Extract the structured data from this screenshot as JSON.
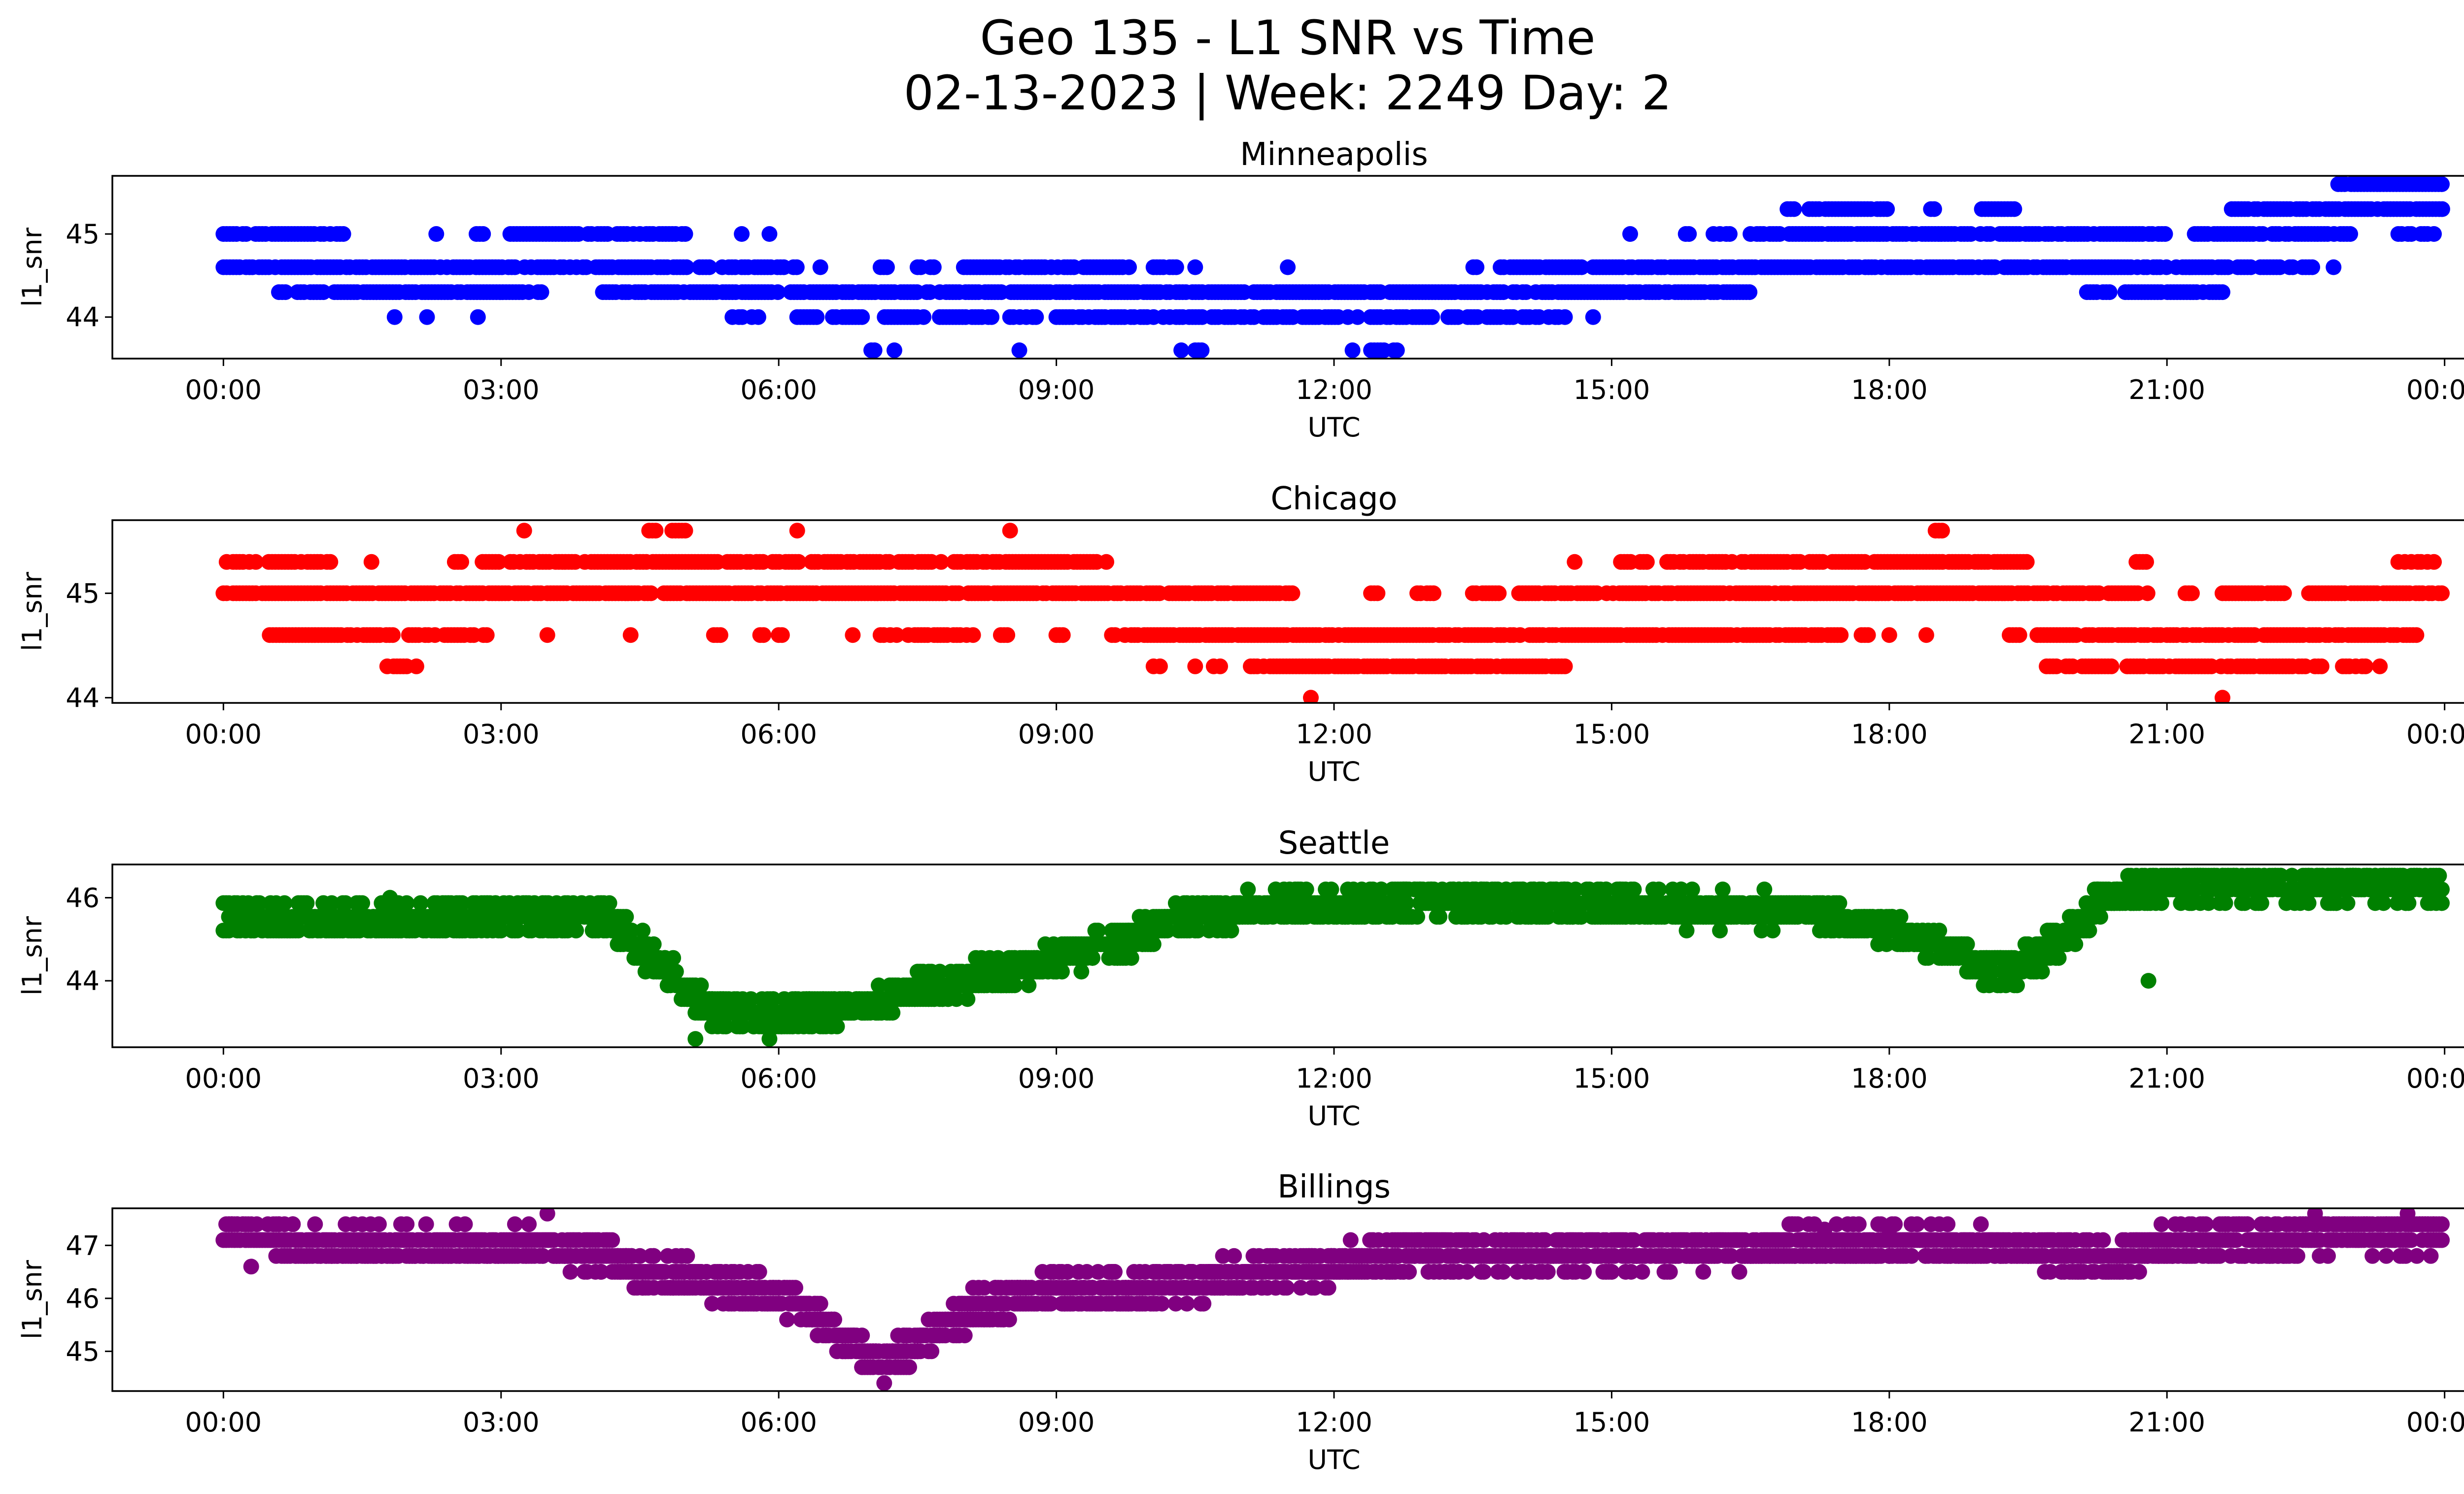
{
  "figure": {
    "title_line1": "Geo 135 - L1 SNR vs Time",
    "title_line2": "02-13-2023 | Week: 2249 Day: 2"
  },
  "chart_data": [
    {
      "type": "scatter",
      "title": "Minneapolis",
      "xlabel": "UTC",
      "ylabel": "l1_snr",
      "color": "#0000ff",
      "xlim_hours": [
        -1.2,
        25.2
      ],
      "ylim": [
        43.5,
        45.7
      ],
      "yticks": [
        44,
        45
      ],
      "xtick_labels": [
        "00:00",
        "03:00",
        "06:00",
        "09:00",
        "12:00",
        "15:00",
        "18:00",
        "21:00",
        "00:00"
      ],
      "grid": false,
      "bands": [
        {
          "y": 45.6,
          "segments": [
            [
              22.85,
              24.0
            ]
          ],
          "density": 0.95
        },
        {
          "y": 45.3,
          "segments": [
            [
              16.9,
              17.0
            ],
            [
              17.1,
              18.0
            ],
            [
              18.45,
              18.5
            ],
            [
              19.0,
              19.35
            ],
            [
              21.7,
              24.0
            ]
          ],
          "density": 0.85
        },
        {
          "y": 45.0,
          "segments": [
            [
              0.0,
              1.3
            ],
            [
              2.3,
              2.3
            ],
            [
              2.7,
              2.85
            ],
            [
              3.1,
              5.0
            ],
            [
              5.6,
              5.6
            ],
            [
              5.9,
              5.9
            ],
            [
              15.2,
              15.2
            ],
            [
              15.8,
              15.9
            ],
            [
              16.1,
              16.3
            ],
            [
              16.5,
              21.0
            ],
            [
              21.3,
              23.0
            ],
            [
              23.5,
              24.0
            ]
          ],
          "density": 0.8
        },
        {
          "y": 44.6,
          "segments": [
            [
              0.0,
              6.2
            ],
            [
              6.45,
              6.5
            ],
            [
              7.1,
              7.2
            ],
            [
              7.5,
              7.7
            ],
            [
              8.0,
              9.8
            ],
            [
              10.05,
              10.3
            ],
            [
              10.5,
              10.5
            ],
            [
              11.5,
              11.5
            ],
            [
              13.4,
              13.6
            ],
            [
              13.8,
              14.7
            ],
            [
              14.8,
              22.6
            ],
            [
              22.8,
              22.8
            ]
          ],
          "density": 0.8
        },
        {
          "y": 44.3,
          "segments": [
            [
              0.6,
              0.7
            ],
            [
              0.8,
              1.1
            ],
            [
              1.2,
              3.3
            ],
            [
              3.4,
              3.5
            ],
            [
              4.1,
              16.5
            ],
            [
              20.1,
              20.4
            ],
            [
              20.55,
              21.6
            ]
          ],
          "density": 0.85
        },
        {
          "y": 44.0,
          "segments": [
            [
              1.85,
              1.85
            ],
            [
              2.2,
              2.2
            ],
            [
              2.75,
              2.75
            ],
            [
              5.5,
              5.8
            ],
            [
              6.2,
              8.3
            ],
            [
              8.5,
              8.8
            ],
            [
              9.0,
              14.5
            ],
            [
              14.8,
              14.8
            ]
          ],
          "density": 0.7
        },
        {
          "y": 43.6,
          "segments": [
            [
              7.0,
              7.1
            ],
            [
              7.25,
              7.25
            ],
            [
              8.6,
              8.6
            ],
            [
              10.35,
              10.35
            ],
            [
              10.5,
              10.6
            ],
            [
              12.2,
              12.2
            ],
            [
              12.4,
              12.7
            ]
          ],
          "density": 0.8
        }
      ]
    },
    {
      "type": "scatter",
      "title": "Chicago",
      "xlabel": "UTC",
      "ylabel": "l1_snr",
      "color": "#ff0000",
      "xlim_hours": [
        -1.2,
        25.2
      ],
      "ylim": [
        43.95,
        45.7
      ],
      "yticks": [
        44,
        45
      ],
      "xtick_labels": [
        "00:00",
        "03:00",
        "06:00",
        "09:00",
        "12:00",
        "15:00",
        "18:00",
        "21:00",
        "00:00"
      ],
      "grid": false,
      "bands": [
        {
          "y": 45.6,
          "segments": [
            [
              3.25,
              3.25
            ],
            [
              4.6,
              4.7
            ],
            [
              4.85,
              5.0
            ],
            [
              6.2,
              6.2
            ],
            [
              8.5,
              8.5
            ],
            [
              18.5,
              18.6
            ]
          ],
          "density": 0.95
        },
        {
          "y": 45.3,
          "segments": [
            [
              0.0,
              1.2
            ],
            [
              1.6,
              1.6
            ],
            [
              2.5,
              2.6
            ],
            [
              2.8,
              3.0
            ],
            [
              3.1,
              9.6
            ],
            [
              14.6,
              14.6
            ],
            [
              15.1,
              15.4
            ],
            [
              15.6,
              19.5
            ],
            [
              20.6,
              20.8
            ],
            [
              23.5,
              23.9
            ]
          ],
          "density": 0.8
        },
        {
          "y": 45.0,
          "segments": [
            [
              0.0,
              11.6
            ],
            [
              12.4,
              12.5
            ],
            [
              12.9,
              13.1
            ],
            [
              13.5,
              13.8
            ],
            [
              14.0,
              20.8
            ],
            [
              21.2,
              21.3
            ],
            [
              21.6,
              22.3
            ],
            [
              22.5,
              24.0
            ]
          ],
          "density": 0.9
        },
        {
          "y": 44.6,
          "segments": [
            [
              0.5,
              2.9
            ],
            [
              3.5,
              3.5
            ],
            [
              4.4,
              4.4
            ],
            [
              5.3,
              5.4
            ],
            [
              5.8,
              5.9
            ],
            [
              6.0,
              6.1
            ],
            [
              6.8,
              6.8
            ],
            [
              7.1,
              7.3
            ],
            [
              7.4,
              8.1
            ],
            [
              8.4,
              8.5
            ],
            [
              9.0,
              9.1
            ],
            [
              9.6,
              17.5
            ],
            [
              17.7,
              17.8
            ],
            [
              18.0,
              18.0
            ],
            [
              18.4,
              18.4
            ],
            [
              19.3,
              19.5
            ],
            [
              19.6,
              23.7
            ]
          ],
          "density": 0.85
        },
        {
          "y": 44.3,
          "segments": [
            [
              1.7,
              2.1
            ],
            [
              10.05,
              10.15
            ],
            [
              10.5,
              10.5
            ],
            [
              10.7,
              10.8
            ],
            [
              11.1,
              14.5
            ],
            [
              19.7,
              20.4
            ],
            [
              20.5,
              22.5
            ],
            [
              22.6,
              22.7
            ],
            [
              22.9,
              23.2
            ],
            [
              23.3,
              23.4
            ]
          ],
          "density": 0.85
        },
        {
          "y": 44.0,
          "segments": [
            [
              11.75,
              11.75
            ],
            [
              21.6,
              21.6
            ]
          ],
          "density": 1.0
        }
      ]
    },
    {
      "type": "scatter",
      "title": "Seattle",
      "xlabel": "UTC",
      "ylabel": "l1_snr",
      "color": "#008000",
      "xlim_hours": [
        -1.2,
        25.2
      ],
      "ylim": [
        42.4,
        46.8
      ],
      "yticks": [
        44,
        46
      ],
      "xtick_labels": [
        "00:00",
        "03:00",
        "06:00",
        "09:00",
        "12:00",
        "15:00",
        "18:00",
        "21:00",
        "00:00"
      ],
      "grid": false,
      "profile": {
        "times": [
          0,
          1,
          2,
          3,
          4,
          4.3,
          4.6,
          4.9,
          5.2,
          5.6,
          6.0,
          6.5,
          7.0,
          7.5,
          8.0,
          8.5,
          9.0,
          9.5,
          10.0,
          10.5,
          11.0,
          12.0,
          13.0,
          14.0,
          15.0,
          16.0,
          17.0,
          17.5,
          18.0,
          18.5,
          19.0,
          19.3,
          19.6,
          20.0,
          20.3,
          20.6,
          21.0,
          22.0,
          23.0,
          24.0
        ],
        "center": [
          45.6,
          45.4,
          45.5,
          45.6,
          45.6,
          45.3,
          44.6,
          44.0,
          43.4,
          43.2,
          43.2,
          43.3,
          43.5,
          43.8,
          44.0,
          44.2,
          44.5,
          44.8,
          45.2,
          45.6,
          45.7,
          45.8,
          45.9,
          45.9,
          45.8,
          45.7,
          45.7,
          45.5,
          45.2,
          44.8,
          44.3,
          44.3,
          44.6,
          45.2,
          45.9,
          46.2,
          46.3,
          46.3,
          46.3,
          46.3
        ],
        "spread": 0.35,
        "step": 0.33
      },
      "outliers": [
        [
          20.8,
          44.0
        ],
        [
          5.1,
          42.6
        ],
        [
          5.9,
          42.6
        ],
        [
          8.4,
          44.3
        ],
        [
          1.8,
          46.0
        ]
      ]
    },
    {
      "type": "scatter",
      "title": "Billings",
      "xlabel": "UTC",
      "ylabel": "l1_snr",
      "color": "#800080",
      "xlim_hours": [
        -1.2,
        25.2
      ],
      "ylim": [
        44.25,
        47.7
      ],
      "yticks": [
        45,
        46,
        47
      ],
      "xtick_labels": [
        "00:00",
        "03:00",
        "06:00",
        "09:00",
        "12:00",
        "15:00",
        "18:00",
        "21:00",
        "00:00"
      ],
      "grid": false,
      "profile": {
        "times": [
          0,
          0.5,
          1,
          2,
          3,
          4,
          4.5,
          5,
          5.5,
          6,
          6.3,
          6.6,
          6.9,
          7.1,
          7.4,
          7.7,
          8.0,
          8.5,
          9.0,
          10,
          11,
          12,
          12.5,
          13,
          14,
          15,
          16,
          17,
          18,
          19,
          20,
          20.5,
          21,
          22,
          23,
          24
        ],
        "center": [
          47.3,
          47.2,
          47.0,
          47.0,
          47.0,
          46.9,
          46.5,
          46.4,
          46.2,
          46.0,
          45.8,
          45.4,
          45.0,
          44.7,
          45.0,
          45.4,
          45.7,
          46.0,
          46.1,
          46.2,
          46.4,
          46.6,
          46.8,
          46.9,
          46.9,
          46.9,
          46.9,
          47.0,
          47.0,
          47.0,
          46.9,
          46.7,
          47.0,
          47.1,
          47.2,
          47.2
        ],
        "spread": 0.3,
        "step": 0.3
      },
      "outliers": [
        [
          0.3,
          46.6
        ],
        [
          3.5,
          47.6
        ],
        [
          22.6,
          47.6
        ],
        [
          23.6,
          47.6
        ],
        [
          17.3,
          47.3
        ],
        [
          18.0,
          47.3
        ]
      ]
    }
  ]
}
